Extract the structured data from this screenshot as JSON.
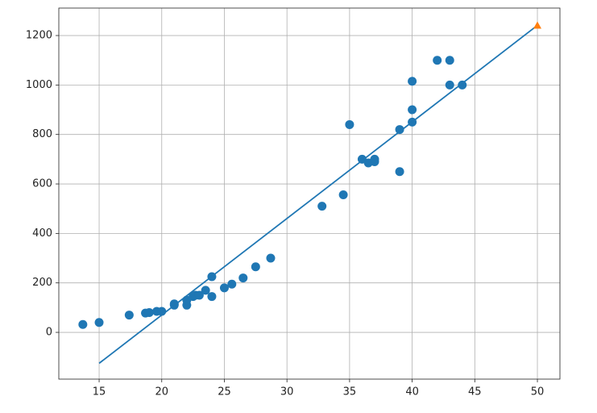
{
  "chart_data": {
    "type": "scatter",
    "scatter": {
      "x": [
        13.7,
        15,
        17.4,
        18.7,
        19,
        19.6,
        20,
        21,
        21,
        22,
        22,
        22.5,
        22.7,
        23,
        23.5,
        24,
        24,
        25,
        25.6,
        26.5,
        27.5,
        28.7,
        32.8,
        34.5,
        35,
        36,
        36.5,
        37,
        37,
        39,
        39,
        40,
        40,
        40,
        42,
        43,
        43,
        44
      ],
      "y": [
        32,
        40,
        70,
        78,
        80,
        85,
        85,
        110,
        115,
        110,
        130,
        145,
        150,
        150,
        170,
        145,
        225,
        180,
        195,
        220,
        265,
        300,
        510,
        556,
        840,
        700,
        685,
        690,
        700,
        650,
        820,
        850,
        900,
        1015,
        1100,
        1100,
        1000,
        1000
      ],
      "color": "#1f77b4"
    },
    "line": {
      "x": [
        15,
        50
      ],
      "y": [
        -125,
        1241
      ],
      "color": "#1f77b4"
    },
    "marker": {
      "x": [
        50
      ],
      "y": [
        1241
      ],
      "color": "#ff7f0e"
    },
    "xlim": [
      11.78,
      51.8
    ],
    "ylim": [
      -189,
      1311
    ],
    "xticks": [
      15,
      20,
      25,
      30,
      35,
      40,
      45,
      50
    ],
    "yticks": [
      0,
      200,
      400,
      600,
      800,
      1000,
      1200
    ],
    "grid": true
  }
}
